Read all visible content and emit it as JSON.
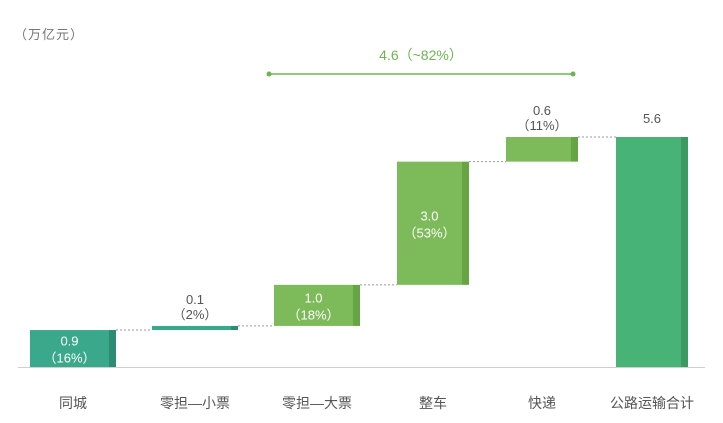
{
  "unit_label": "（万亿元）",
  "chart_data": {
    "type": "waterfall",
    "title": "",
    "xlabel": "",
    "ylabel": "",
    "categories": [
      "同城",
      "零担—小票",
      "零担—大票",
      "整车",
      "快递",
      "公路运输合计"
    ],
    "values": [
      0.9,
      0.1,
      1.0,
      3.0,
      0.6,
      5.6
    ],
    "starts": [
      0,
      0.9,
      1.0,
      2.0,
      5.0,
      0
    ],
    "value_labels": [
      "0.9",
      "0.1",
      "1.0",
      "3.0",
      "0.6",
      "5.6"
    ],
    "share_labels": [
      "（16%）",
      "（2%）",
      "（18%）",
      "（53%）",
      "（11%）",
      ""
    ],
    "bracket": {
      "from_category": "零担—大票",
      "to_category": "快递",
      "label": "4.6（~82%）"
    },
    "ylim": [
      0,
      5.6
    ],
    "grid": false,
    "colors": {
      "teal": "#3aa98b",
      "teal_dark": "#2c8b70",
      "green": "#7dbb5a",
      "green_dark": "#66a544",
      "total": "#48b376",
      "total_dark": "#3a9a61",
      "bracket": "#6cb651",
      "text": "#555555"
    },
    "bar_colors": [
      "teal",
      "teal",
      "green",
      "green",
      "green",
      "total"
    ],
    "label_position": [
      "inside",
      "above",
      "inside",
      "inside",
      "above",
      "above"
    ]
  }
}
